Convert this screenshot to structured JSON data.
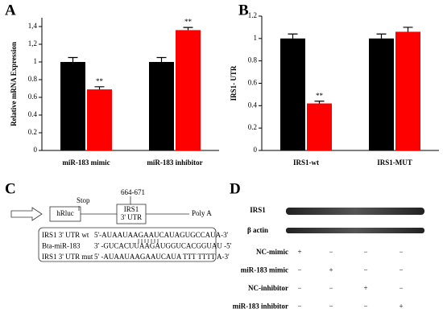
{
  "chart_data": [
    {
      "type": "bar",
      "panel": "A",
      "ylabel": "Relative mRNA Expression",
      "categories": [
        "miR-183 mimic",
        "miR-183 inhibitor"
      ],
      "series": [
        {
          "color": "#000000",
          "values": [
            1.0,
            1.0
          ],
          "errors": [
            0.05,
            0.05
          ]
        },
        {
          "color": "#ff0000",
          "values": [
            0.69,
            1.36
          ],
          "errors": [
            0.03,
            0.03
          ],
          "annotations": [
            "**",
            "**"
          ]
        }
      ],
      "ylim": [
        0,
        1.5
      ],
      "yticks": [
        0.0,
        0.2,
        0.4,
        0.6,
        0.8,
        1.0,
        {
          "value": 1.2,
          "label": "1,2"
        },
        {
          "value": 1.4,
          "label": "1,4"
        }
      ]
    },
    {
      "type": "bar",
      "panel": "B",
      "ylabel": "IRS1- UTR",
      "categories": [
        "IRS1-wt",
        "IRS1-MUT"
      ],
      "series": [
        {
          "color": "#000000",
          "values": [
            1.0,
            1.0
          ],
          "errors": [
            0.04,
            0.04
          ]
        },
        {
          "color": "#ff0000",
          "values": [
            0.42,
            1.06
          ],
          "errors": [
            0.02,
            0.04
          ],
          "annotations": [
            "**",
            null
          ]
        }
      ],
      "ylim": [
        0,
        1.2
      ],
      "yticks": [
        0.0,
        0.2,
        0.4,
        0.6,
        0.8,
        1.0,
        1.2
      ]
    }
  ],
  "diagram": {
    "panel": "C",
    "stop": "Stop",
    "site": "664-671",
    "gene": "hRluc",
    "utr1": "IRS1",
    "utr2": "3' UTR",
    "polya": "Poly A",
    "rows": [
      {
        "label": "IRS1 3' UTR wt",
        "seq": "5'-AUAAUAAGAAUCAUAGUGCCAUA-3'"
      },
      {
        "label": "Bta-miR-183",
        "seq": "3' -GUCACUUAAGAUGGUCACGGUAU -5'"
      },
      {
        "label": "IRS1 3' UTR mut",
        "seq": "5' -AUAAUAAGAAUCAUA TTT TTTT A-3'"
      }
    ]
  },
  "blot": {
    "panel": "D",
    "bands": [
      "IRS1",
      "β actin"
    ],
    "rows": [
      {
        "label": "NC-mimic",
        "signs": [
          "+",
          "−",
          "−",
          "−"
        ]
      },
      {
        "label": "miR-183 mimic",
        "signs": [
          "−",
          "+",
          "−",
          "−"
        ]
      },
      {
        "label": "NC-inhibitor",
        "signs": [
          "−",
          "−",
          "+",
          "−"
        ]
      },
      {
        "label": "miR-183 inhibitor",
        "signs": [
          "−",
          "−",
          "−",
          "+"
        ]
      }
    ]
  }
}
